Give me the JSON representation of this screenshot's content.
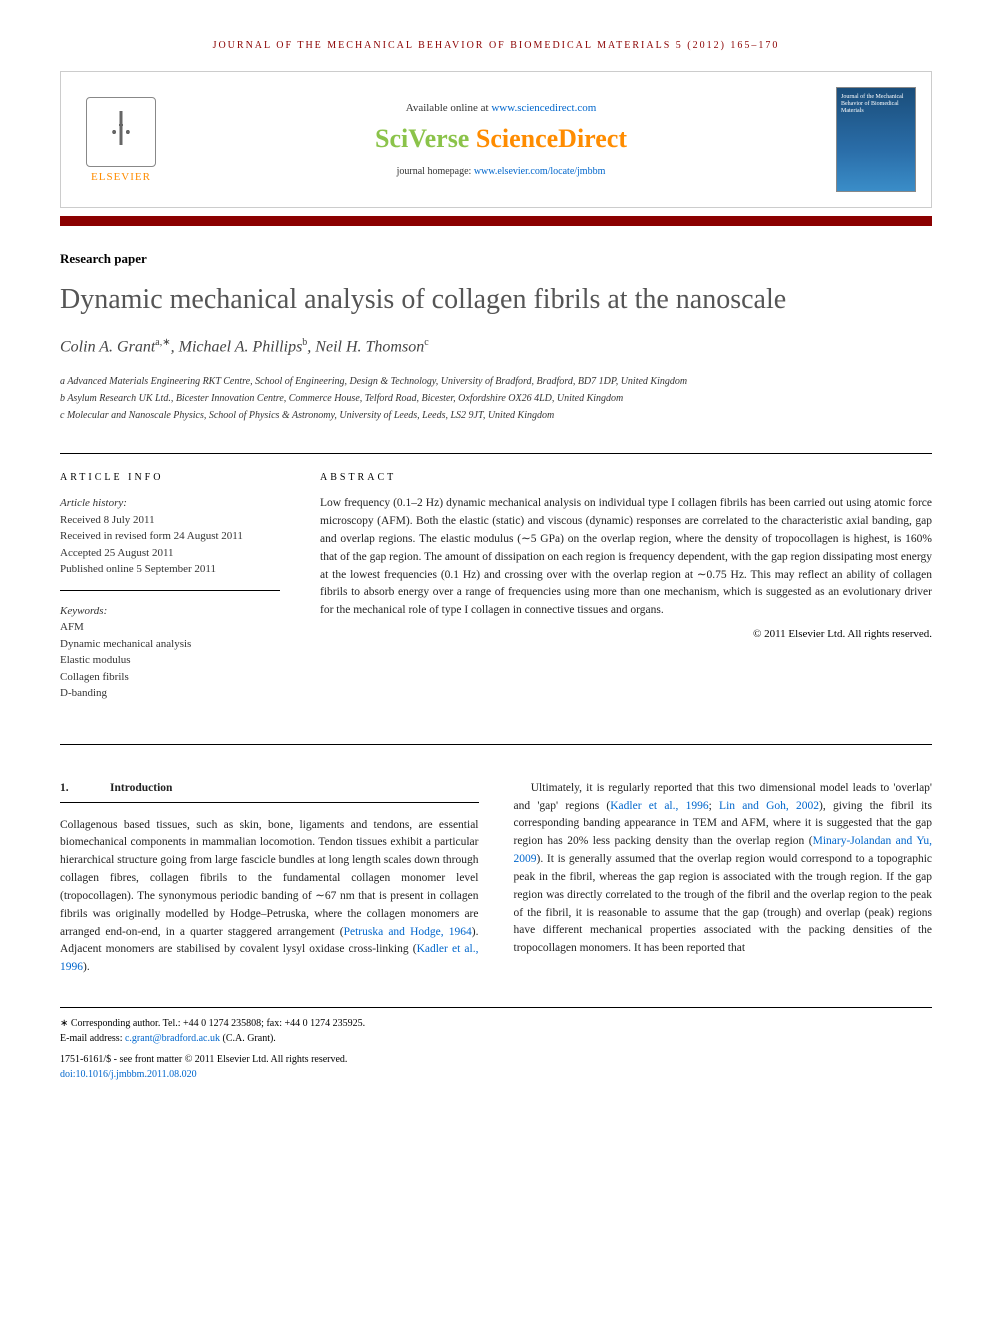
{
  "running_head": "JOURNAL OF THE MECHANICAL BEHAVIOR OF BIOMEDICAL MATERIALS 5 (2012) 165–170",
  "header": {
    "publisher_name": "ELSEVIER",
    "available_text": "Available online at ",
    "sd_url": "www.sciencedirect.com",
    "brand_sci": "SciVerse ",
    "brand_direct": "ScienceDirect",
    "homepage_label": "journal homepage: ",
    "homepage_url": "www.elsevier.com/locate/jmbbm",
    "cover_title": "Journal of the Mechanical Behavior of Biomedical Materials"
  },
  "paper_type": "Research paper",
  "title": "Dynamic mechanical analysis of collagen fibrils at the nanoscale",
  "authors_html": "Colin A. Grant<sup>a,∗</sup>, Michael A. Phillips<sup>b</sup>, Neil H. Thomson<sup>c</sup>",
  "affiliations": {
    "a": "a Advanced Materials Engineering RKT Centre, School of Engineering, Design & Technology, University of Bradford, Bradford, BD7 1DP, United Kingdom",
    "b": "b Asylum Research UK Ltd., Bicester Innovation Centre, Commerce House, Telford Road, Bicester, Oxfordshire OX26 4LD, United Kingdom",
    "c": "c Molecular and Nanoscale Physics, School of Physics & Astronomy, University of Leeds, Leeds, LS2 9JT, United Kingdom"
  },
  "article_info": {
    "heading": "ARTICLE INFO",
    "history_label": "Article history:",
    "received": "Received 8 July 2011",
    "revised": "Received in revised form 24 August 2011",
    "accepted": "Accepted 25 August 2011",
    "published": "Published online 5 September 2011",
    "keywords_label": "Keywords:",
    "keywords": [
      "AFM",
      "Dynamic mechanical analysis",
      "Elastic modulus",
      "Collagen fibrils",
      "D-banding"
    ]
  },
  "abstract": {
    "heading": "ABSTRACT",
    "text": "Low frequency (0.1–2 Hz) dynamic mechanical analysis on individual type I collagen fibrils has been carried out using atomic force microscopy (AFM). Both the elastic (static) and viscous (dynamic) responses are correlated to the characteristic axial banding, gap and overlap regions. The elastic modulus (∼5 GPa) on the overlap region, where the density of tropocollagen is highest, is 160% that of the gap region. The amount of dissipation on each region is frequency dependent, with the gap region dissipating most energy at the lowest frequencies (0.1 Hz) and crossing over with the overlap region at ∼0.75 Hz. This may reflect an ability of collagen fibrils to absorb energy over a range of frequencies using more than one mechanism, which is suggested as an evolutionary driver for the mechanical role of type I collagen in connective tissues and organs.",
    "copyright": "© 2011 Elsevier Ltd. All rights reserved."
  },
  "intro": {
    "num": "1.",
    "title": "Introduction",
    "col1_p1_a": "Collagenous based tissues, such as skin, bone, ligaments and tendons, are essential biomechanical components in mammalian locomotion. Tendon tissues exhibit a particular hierarchical structure going from large fascicle bundles at long length scales down through collagen fibres, collagen fibrils to the fundamental collagen monomer level (tropocollagen). The synonymous periodic banding of ∼67 nm that is present in collagen fibrils was originally modelled by Hodge–Petruska, where the collagen monomers are arranged end-on-end, in a quarter staggered arrangement (",
    "cite1": "Petruska and Hodge, 1964",
    "col1_p1_b": "). Adjacent monomers are stabilised by covalent lysyl oxidase cross-linking (",
    "cite2": "Kadler et al., 1996",
    "col1_p1_c": ").",
    "col2_p1_a": "Ultimately, it is regularly reported that this two dimensional model leads to 'overlap' and 'gap' regions (",
    "cite3": "Kadler et al., 1996",
    "col2_p1_b": "; ",
    "cite4": "Lin and Goh, 2002",
    "col2_p1_c": "), giving the fibril its corresponding banding appearance in TEM and AFM, where it is suggested that the gap region has 20% less packing density than the overlap region (",
    "cite5": "Minary-Jolandan and Yu, 2009",
    "col2_p1_d": "). It is generally assumed that the overlap region would correspond to a topographic peak in the fibril, whereas the gap region is associated with the trough region. If the gap region was directly correlated to the trough of the fibril and the overlap region to the peak of the fibril, it is reasonable to assume that the gap (trough) and overlap (peak) regions have different mechanical properties associated with the packing densities of the tropocollagen monomers. It has been reported that"
  },
  "footer": {
    "corresponding": "∗ Corresponding author. Tel.: +44 0 1274 235808; fax: +44 0 1274 235925.",
    "email_label": "E-mail address: ",
    "email": "c.grant@bradford.ac.uk",
    "email_suffix": " (C.A. Grant).",
    "issn": "1751-6161/$ - see front matter © 2011 Elsevier Ltd. All rights reserved.",
    "doi": "doi:10.1016/j.jmbbm.2011.08.020"
  },
  "colors": {
    "journal_red": "#8b0000",
    "link_blue": "#0066cc",
    "elsevier_orange": "#ff8c00",
    "sciverse_green": "#8bc34a",
    "title_gray": "#555555"
  }
}
